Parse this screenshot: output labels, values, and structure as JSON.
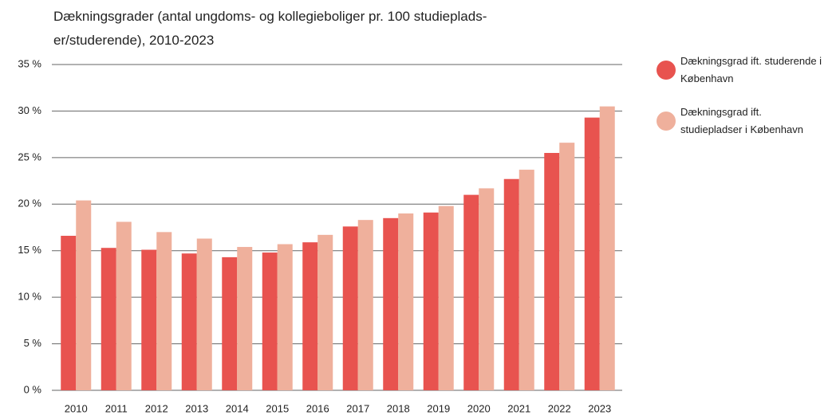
{
  "chart_data": {
    "type": "bar",
    "title": "Dækningsgrader (antal ungdoms- og kollegieboliger pr. 100 studieplads-er/studerende), 2010-2023",
    "categories": [
      "2010",
      "2011",
      "2012",
      "2013",
      "2014",
      "2015",
      "2016",
      "2017",
      "2018",
      "2019",
      "2020",
      "2021",
      "2022",
      "2023"
    ],
    "series": [
      {
        "name": "Dækningsgrad ift. studerende i København",
        "color": "#e8534f",
        "values": [
          16.6,
          15.3,
          15.1,
          14.7,
          14.3,
          14.8,
          15.9,
          17.6,
          18.5,
          19.1,
          21.0,
          22.7,
          25.5,
          29.3
        ]
      },
      {
        "name": "Dækningsgrad ift. studiepladser i København",
        "color": "#efb09c",
        "values": [
          20.4,
          18.1,
          17.0,
          16.3,
          15.4,
          15.7,
          16.7,
          18.3,
          19.0,
          19.8,
          21.7,
          23.7,
          26.6,
          30.5
        ]
      }
    ],
    "ylim": [
      0,
      35
    ],
    "yticks": [
      {
        "value": 0,
        "label": "0 %"
      },
      {
        "value": 5,
        "label": "5 %"
      },
      {
        "value": 10,
        "label": "10 %"
      },
      {
        "value": 15,
        "label": "15 %"
      },
      {
        "value": 20,
        "label": "20 %"
      },
      {
        "value": 25,
        "label": "25 %"
      },
      {
        "value": 30,
        "label": "30 %"
      },
      {
        "value": 35,
        "label": "35 %"
      }
    ],
    "grid": true
  }
}
